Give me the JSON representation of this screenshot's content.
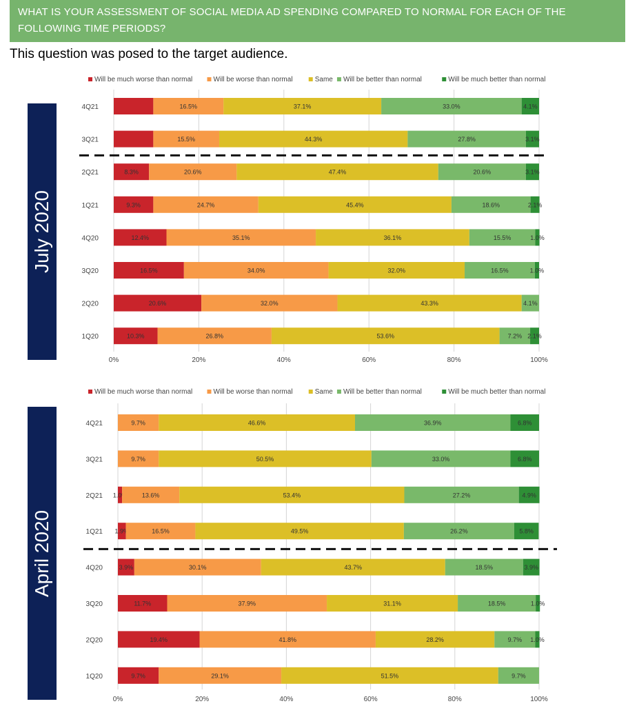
{
  "header": {
    "title": "WHAT IS YOUR ASSESSMENT OF SOCIAL MEDIA AD SPENDING COMPARED TO NORMAL FOR EACH OF THE FOLLOWING TIME PERIODS?",
    "subtitle": "This question was posed to the target audience."
  },
  "colors": {
    "much_worse": "#c9242b",
    "worse": "#f79a47",
    "same": "#dcbf27",
    "better": "#79b96a",
    "much_better": "#2e8f36"
  },
  "chart_data": [
    {
      "type": "bar",
      "orientation": "horizontal",
      "stacked": true,
      "side_label": "July 2020",
      "legend_position": "top",
      "grid": true,
      "xlim": [
        0,
        100
      ],
      "x_ticks": [
        "0%",
        "20%",
        "40%",
        "60%",
        "80%",
        "100%"
      ],
      "categories": [
        "4Q21",
        "3Q21",
        "2Q21",
        "1Q21",
        "4Q20",
        "3Q20",
        "2Q20",
        "1Q20"
      ],
      "series": [
        {
          "name": "Will be much worse than normal",
          "values": [
            9.3,
            9.3,
            8.3,
            9.3,
            12.4,
            16.5,
            20.6,
            10.3
          ],
          "labels": [
            "",
            "",
            "8.3%",
            "9.3%",
            "12.4%",
            "16.5%",
            "20.6%",
            "10.3%"
          ]
        },
        {
          "name": "Will be worse than normal",
          "values": [
            16.5,
            15.5,
            20.6,
            24.7,
            35.1,
            34.0,
            32.0,
            26.8
          ],
          "labels": [
            "16.5%",
            "15.5%",
            "20.6%",
            "24.7%",
            "35.1%",
            "34.0%",
            "32.0%",
            "26.8%"
          ]
        },
        {
          "name": "Same",
          "values": [
            37.1,
            44.3,
            47.4,
            45.4,
            36.1,
            32.0,
            43.3,
            53.6
          ],
          "labels": [
            "37.1%",
            "44.3%",
            "47.4%",
            "45.4%",
            "36.1%",
            "32.0%",
            "43.3%",
            "53.6%"
          ]
        },
        {
          "name": "Will be better than normal",
          "values": [
            33.0,
            27.8,
            20.6,
            18.6,
            15.5,
            16.5,
            4.1,
            7.2
          ],
          "labels": [
            "33.0%",
            "27.8%",
            "20.6%",
            "18.6%",
            "15.5%",
            "16.5%",
            "4.1%",
            "7.2%"
          ]
        },
        {
          "name": "Will be much better than normal",
          "values": [
            4.1,
            3.1,
            3.1,
            2.1,
            1.0,
            1.0,
            0,
            2.1
          ],
          "labels": [
            "4.1%",
            "3.1%",
            "3.1%",
            "2.1%",
            "1.0%",
            "1.0%",
            "",
            "2.1%"
          ]
        }
      ],
      "divider_after_category": "3Q21"
    },
    {
      "type": "bar",
      "orientation": "horizontal",
      "stacked": true,
      "side_label": "April 2020",
      "legend_position": "top",
      "grid": true,
      "xlim": [
        0,
        100
      ],
      "x_ticks": [
        "0%",
        "20%",
        "40%",
        "60%",
        "80%",
        "100%"
      ],
      "categories": [
        "4Q21",
        "3Q21",
        "2Q21",
        "1Q21",
        "4Q20",
        "3Q20",
        "2Q20",
        "1Q20"
      ],
      "series": [
        {
          "name": "Will be much worse than normal",
          "values": [
            0,
            0,
            1.0,
            1.9,
            3.9,
            11.7,
            19.4,
            9.7
          ],
          "labels": [
            "",
            "",
            "1.0%",
            "1.9%",
            "3.9%",
            "11.7%",
            "19.4%",
            "9.7%"
          ]
        },
        {
          "name": "Will be worse than normal",
          "values": [
            9.7,
            9.7,
            13.6,
            16.5,
            30.1,
            37.9,
            41.8,
            29.1
          ],
          "labels": [
            "9.7%",
            "9.7%",
            "13.6%",
            "16.5%",
            "30.1%",
            "37.9%",
            "41.8%",
            "29.1%"
          ]
        },
        {
          "name": "Same",
          "values": [
            46.6,
            50.5,
            53.4,
            49.5,
            43.7,
            31.1,
            28.2,
            51.5
          ],
          "labels": [
            "46.6%",
            "50.5%",
            "53.4%",
            "49.5%",
            "43.7%",
            "31.1%",
            "28.2%",
            "51.5%"
          ]
        },
        {
          "name": "Will be better than normal",
          "values": [
            36.9,
            33.0,
            27.2,
            26.2,
            18.5,
            18.5,
            9.7,
            9.7
          ],
          "labels": [
            "36.9%",
            "33.0%",
            "27.2%",
            "26.2%",
            "18.5%",
            "18.5%",
            "9.7%",
            "9.7%"
          ]
        },
        {
          "name": "Will be much better than normal",
          "values": [
            6.8,
            6.8,
            4.9,
            5.8,
            3.9,
            1.0,
            1.0,
            0
          ],
          "labels": [
            "6.8%",
            "6.8%",
            "4.9%",
            "5.8%",
            "3.9%",
            "1.0%",
            "1.0%",
            ""
          ]
        }
      ],
      "divider_after_category": "1Q21"
    }
  ]
}
